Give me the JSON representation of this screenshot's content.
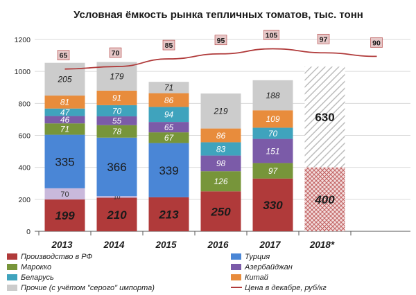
{
  "chart_data": {
    "type": "bar",
    "stacked": true,
    "title": "Условная ёмкость рынка тепличных томатов, тыс. тонн",
    "categories": [
      "2013",
      "2014",
      "2015",
      "2016",
      "2017",
      "2018*"
    ],
    "ylim": [
      0,
      1200
    ],
    "yticks": [
      "0",
      "200",
      "400",
      "600",
      "800",
      "1000",
      "1200"
    ],
    "grid": true,
    "legend_position": "bottom",
    "series": [
      {
        "name": "Производство в РФ",
        "color": "#b03a3a",
        "values": [
          199,
          210,
          213,
          250,
          330,
          400
        ],
        "labels": [
          "199",
          "210",
          "213",
          "250",
          "330",
          "400"
        ]
      },
      {
        "name": "Турция",
        "color": "#4a86d6",
        "values": [
          335,
          366,
          339,
          0,
          0,
          0
        ],
        "labels": [
          "335",
          "366",
          "339",
          "",
          "",
          ""
        ]
      },
      {
        "name": "Марокко",
        "color": "#77953a",
        "values": [
          71,
          78,
          67,
          126,
          97,
          0
        ],
        "labels": [
          "71",
          "78",
          "67",
          "126",
          "97",
          ""
        ]
      },
      {
        "name": "Азербайджан",
        "color": "#7b5ba8",
        "values": [
          46,
          55,
          65,
          98,
          151,
          0
        ],
        "labels": [
          "46",
          "55",
          "65",
          "98",
          "151",
          ""
        ]
      },
      {
        "name": "Беларусь",
        "color": "#3fa3bd",
        "values": [
          47,
          70,
          94,
          83,
          70,
          0
        ],
        "labels": [
          "47",
          "70",
          "94",
          "83",
          "70",
          ""
        ]
      },
      {
        "name": "Китай",
        "color": "#e88c3c",
        "values": [
          81,
          91,
          86,
          86,
          109,
          0
        ],
        "labels": [
          "81",
          "91",
          "86",
          "86",
          "109",
          ""
        ]
      },
      {
        "name": "Прочие (с учётом \"серого\" импорта)",
        "color": "#cccccc",
        "values": [
          205,
          179,
          71,
          219,
          188,
          630
        ],
        "labels": [
          "205",
          "179",
          "71",
          "219",
          "188",
          "630"
        ]
      }
    ],
    "extra_segments": [
      {
        "category": "2013",
        "after_series": "Производство в РФ",
        "value": 70,
        "color": "#c9b9dc",
        "label": "70"
      },
      {
        "category": "2014",
        "after_series": "Производство в РФ",
        "value": 10,
        "color": "#c9b9dc",
        "label": "10"
      }
    ],
    "forecast_categories": [
      "2018*"
    ],
    "forecast_totals_hatched": {
      "bottom_series": "Производство в РФ",
      "top_series": "Прочие (с учётом \"серого\" импорта)"
    },
    "line_series": {
      "name": "Цена в декабре, руб/кг",
      "color": "#b03a3a",
      "x_positions": [
        "2013",
        "2014",
        "2015",
        "2016",
        "2017",
        "2018*",
        "end"
      ],
      "values": [
        65,
        70,
        85,
        95,
        105,
        97,
        90
      ],
      "labels": [
        "65",
        "70",
        "85",
        "95",
        "105",
        "97",
        "90"
      ]
    }
  },
  "colors": {
    "grid": "#d9d9d9",
    "axis": "#555555",
    "hatch_red": "#b03a3a",
    "hatch_gray": "#c8c8c8",
    "price_box_fill": "#e6c7c7",
    "price_box_stroke": "#b03a3a"
  }
}
